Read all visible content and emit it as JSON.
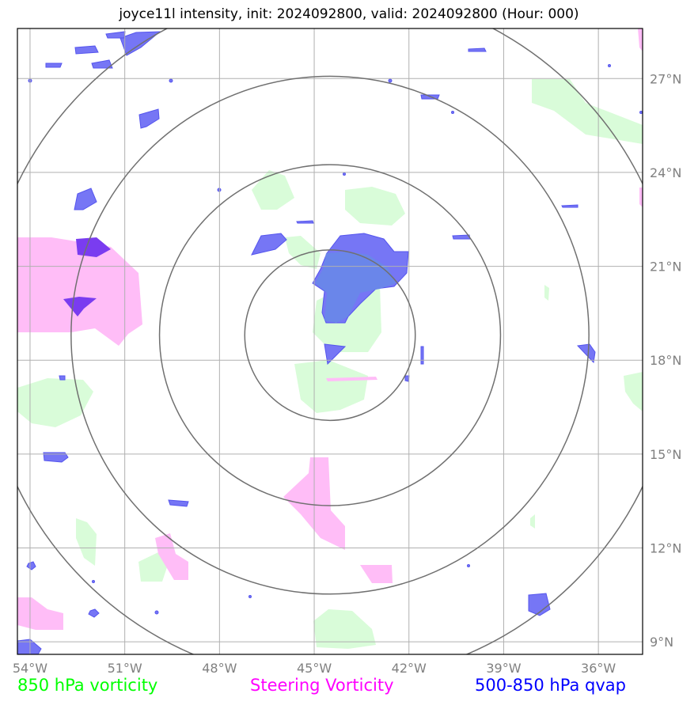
{
  "title": "joyce11l intensity, init: 2024092800, valid: 2024092800 (Hour: 000)",
  "map": {
    "lon_range": [
      -54.4,
      -34.6
    ],
    "lat_range": [
      8.6,
      28.6
    ],
    "lon_ticks": [
      {
        "value": -54,
        "label": "54°W"
      },
      {
        "value": -51,
        "label": "51°W"
      },
      {
        "value": -48,
        "label": "48°W"
      },
      {
        "value": -45,
        "label": "45°W"
      },
      {
        "value": -42,
        "label": "42°W"
      },
      {
        "value": -39,
        "label": "39°W"
      },
      {
        "value": -36,
        "label": "36°W"
      }
    ],
    "lat_ticks": [
      {
        "value": 9,
        "label": "9°N"
      },
      {
        "value": 12,
        "label": "12°N"
      },
      {
        "value": 15,
        "label": "15°N"
      },
      {
        "value": 18,
        "label": "18°N"
      },
      {
        "value": 21,
        "label": "21°N"
      },
      {
        "value": 24,
        "label": "24°N"
      },
      {
        "value": 27,
        "label": "27°N"
      }
    ],
    "storm_center": {
      "lon": -44.5,
      "lat": 18.8
    },
    "range_rings_deg": [
      2.7,
      5.4,
      8.2,
      11.0
    ],
    "grid": true
  },
  "legend": [
    {
      "label": "850 hPa vorticity",
      "color": "#00ff00"
    },
    {
      "label": "Steering Vorticity",
      "color": "#ff00ff"
    },
    {
      "label": "500-850 hPa qvap",
      "color": "#0000ff"
    }
  ],
  "colors": {
    "vort850_fill": "#d9fcd9",
    "steering_fill": "#ffbdf7",
    "qvap_fill": "#7676f5",
    "qvap_edge": "#5555ee",
    "overlap_fill": "#7a3cf0",
    "ring": "#707070",
    "grid": "#b0b0b0"
  }
}
